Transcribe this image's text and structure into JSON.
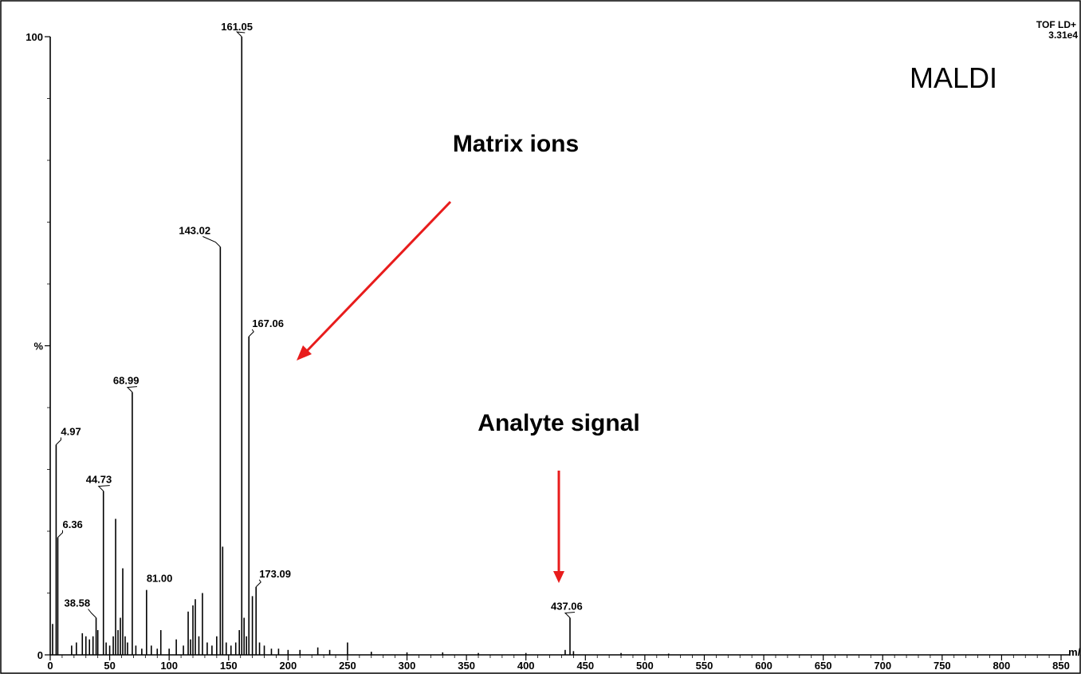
{
  "chart_data": {
    "type": "bar",
    "title": "",
    "xlabel": "m/z",
    "ylabel": "%",
    "xlim": [
      0,
      850
    ],
    "ylim": [
      0,
      100
    ],
    "x_ticks": [
      0,
      50,
      100,
      150,
      200,
      250,
      300,
      350,
      400,
      450,
      500,
      550,
      600,
      650,
      700,
      750,
      800,
      850
    ],
    "y_ticks": [
      {
        "value": 0,
        "label": "0"
      },
      {
        "value": 50,
        "label": "%"
      },
      {
        "value": 100,
        "label": "100"
      }
    ],
    "instrument": "TOF LD+",
    "intensity": "3.31e4",
    "technique_label": "MALDI",
    "annotations": [
      {
        "text": "Matrix ions"
      },
      {
        "text": "Analyte signal"
      }
    ],
    "labeled_peaks": [
      {
        "x": 4.97,
        "y": 34,
        "label": "4.97"
      },
      {
        "x": 6.36,
        "y": 19,
        "label": "6.36"
      },
      {
        "x": 38.58,
        "y": 6,
        "label": "38.58"
      },
      {
        "x": 44.73,
        "y": 26.5,
        "label": "44.73"
      },
      {
        "x": 68.99,
        "y": 42.5,
        "label": "68.99"
      },
      {
        "x": 81.0,
        "y": 10.5,
        "label": "81.00"
      },
      {
        "x": 143.02,
        "y": 66,
        "label": "143.02"
      },
      {
        "x": 161.05,
        "y": 100,
        "label": "161.05"
      },
      {
        "x": 167.06,
        "y": 51.5,
        "label": "167.06"
      },
      {
        "x": 173.09,
        "y": 11,
        "label": "173.09"
      },
      {
        "x": 437.06,
        "y": 6,
        "label": "437.06"
      }
    ],
    "other_peaks": [
      {
        "x": 2,
        "y": 5
      },
      {
        "x": 18,
        "y": 1.5
      },
      {
        "x": 22,
        "y": 2
      },
      {
        "x": 27,
        "y": 3.5
      },
      {
        "x": 30,
        "y": 3
      },
      {
        "x": 33,
        "y": 2.5
      },
      {
        "x": 36,
        "y": 3
      },
      {
        "x": 40,
        "y": 4
      },
      {
        "x": 47,
        "y": 2
      },
      {
        "x": 50,
        "y": 1.5
      },
      {
        "x": 53,
        "y": 3
      },
      {
        "x": 55,
        "y": 22
      },
      {
        "x": 57,
        "y": 4
      },
      {
        "x": 59,
        "y": 6
      },
      {
        "x": 61,
        "y": 14
      },
      {
        "x": 63,
        "y": 3
      },
      {
        "x": 65,
        "y": 2
      },
      {
        "x": 72,
        "y": 1.5
      },
      {
        "x": 77,
        "y": 1
      },
      {
        "x": 85,
        "y": 1.5
      },
      {
        "x": 90,
        "y": 1
      },
      {
        "x": 93,
        "y": 4
      },
      {
        "x": 100,
        "y": 1
      },
      {
        "x": 106,
        "y": 2.5
      },
      {
        "x": 112,
        "y": 1.5
      },
      {
        "x": 116,
        "y": 7
      },
      {
        "x": 118,
        "y": 2.5
      },
      {
        "x": 120,
        "y": 8
      },
      {
        "x": 122,
        "y": 9
      },
      {
        "x": 125,
        "y": 3
      },
      {
        "x": 128,
        "y": 10
      },
      {
        "x": 132,
        "y": 2
      },
      {
        "x": 136,
        "y": 1.5
      },
      {
        "x": 140,
        "y": 3
      },
      {
        "x": 145,
        "y": 17.5
      },
      {
        "x": 148,
        "y": 2
      },
      {
        "x": 152,
        "y": 1.5
      },
      {
        "x": 156,
        "y": 2
      },
      {
        "x": 159,
        "y": 4
      },
      {
        "x": 163,
        "y": 6
      },
      {
        "x": 165,
        "y": 3
      },
      {
        "x": 170,
        "y": 9.5
      },
      {
        "x": 176,
        "y": 2
      },
      {
        "x": 180,
        "y": 1.5
      },
      {
        "x": 186,
        "y": 1
      },
      {
        "x": 192,
        "y": 1
      },
      {
        "x": 200,
        "y": 0.8
      },
      {
        "x": 210,
        "y": 0.8
      },
      {
        "x": 225,
        "y": 1.2
      },
      {
        "x": 235,
        "y": 0.8
      },
      {
        "x": 250,
        "y": 2
      },
      {
        "x": 270,
        "y": 0.5
      },
      {
        "x": 300,
        "y": 0.4
      },
      {
        "x": 330,
        "y": 0.4
      },
      {
        "x": 360,
        "y": 0.3
      },
      {
        "x": 400,
        "y": 0.3
      },
      {
        "x": 433,
        "y": 0.8
      },
      {
        "x": 440,
        "y": 0.6
      },
      {
        "x": 480,
        "y": 0.3
      },
      {
        "x": 520,
        "y": 0.2
      }
    ]
  }
}
